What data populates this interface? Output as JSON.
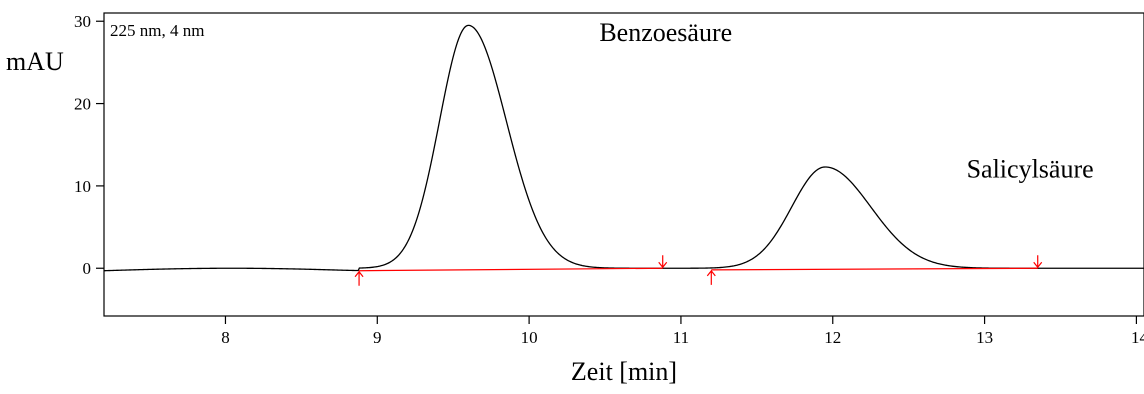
{
  "chart_data": {
    "type": "line",
    "title": "",
    "xlabel": "Zeit [min]",
    "ylabel": "mAU",
    "info_label": "225 nm, 4 nm",
    "xlim": [
      7.2,
      14.05
    ],
    "ylim": [
      -5.8,
      31
    ],
    "x_ticks": [
      8,
      9,
      10,
      11,
      12,
      13,
      14
    ],
    "y_ticks": [
      0,
      10,
      20,
      30
    ],
    "grid": false,
    "legend": "none",
    "line_color": "#000000",
    "marker_color": "#ff0000",
    "series": [
      {
        "peaks": [
          {
            "label": "Benzoesäure",
            "apex_x": 9.6,
            "apex_y": 29.5
          },
          {
            "label": "Salicylsäure",
            "apex_x": 11.95,
            "apex_y": 12.3
          }
        ]
      }
    ],
    "integration_baselines": [
      {
        "start": [
          8.88,
          -0.3
        ],
        "end": [
          10.88,
          0.0
        ]
      },
      {
        "start": [
          11.2,
          -0.2
        ],
        "end": [
          13.35,
          0.0
        ]
      }
    ],
    "annotations": [
      {
        "text": "Benzoesäure",
        "x": 10.9,
        "y": 27.6
      },
      {
        "text": "Salicylsäure",
        "x": 13.3,
        "y": 11.0
      }
    ]
  }
}
